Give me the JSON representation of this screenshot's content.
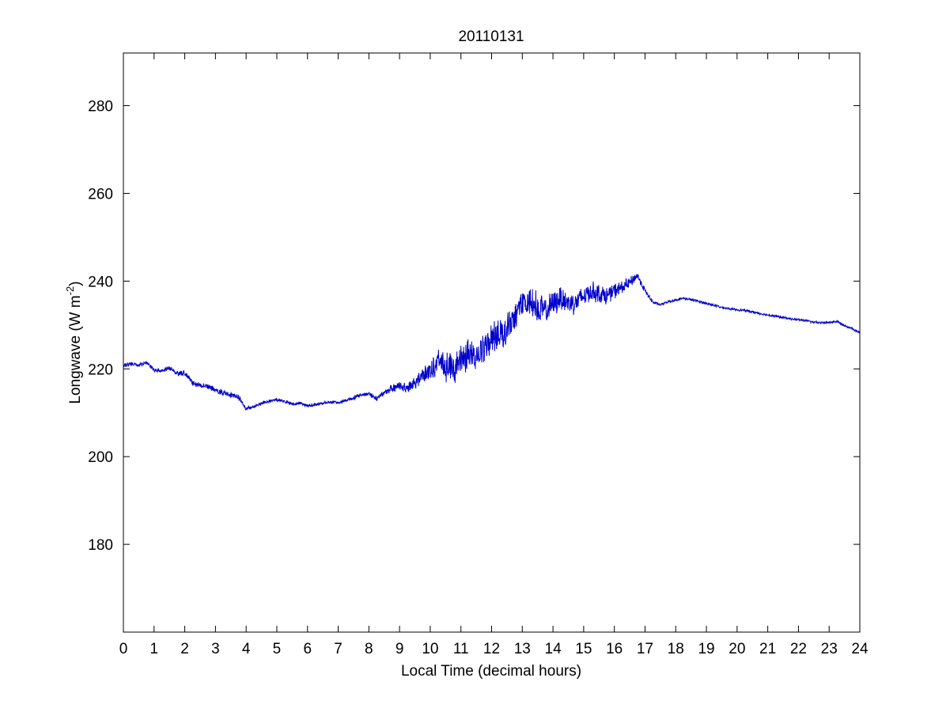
{
  "chart_data": {
    "type": "line",
    "title": "20110131",
    "xlabel": "Local Time (decimal hours)",
    "ylabel": {
      "prefix": "Longwave (W m",
      "superscript": "-2",
      "suffix": ")"
    },
    "xlim": [
      0,
      24
    ],
    "ylim": [
      160,
      292
    ],
    "xticks": [
      0,
      1,
      2,
      3,
      4,
      5,
      6,
      7,
      8,
      9,
      10,
      11,
      12,
      13,
      14,
      15,
      16,
      17,
      18,
      19,
      20,
      21,
      22,
      23,
      24
    ],
    "yticks": [
      180,
      200,
      220,
      240,
      260,
      280
    ],
    "grid": false,
    "line_color": "#0000cc",
    "series": [
      {
        "x": [
          0,
          0.25,
          0.5,
          0.75,
          1.0,
          1.25,
          1.5,
          1.75,
          2.0,
          2.25,
          2.5,
          2.75,
          3.0,
          3.25,
          3.5,
          3.75,
          4.0,
          4.25,
          4.5,
          4.75,
          5.0,
          5.25,
          5.5,
          5.75,
          6.0,
          6.25,
          6.5,
          6.75,
          7.0,
          7.25,
          7.5,
          7.75,
          8.0,
          8.25,
          8.5,
          8.75,
          9.0,
          9.25,
          9.5,
          9.75,
          10.0,
          10.25,
          10.5,
          10.75,
          11.0,
          11.25,
          11.5,
          11.75,
          12.0,
          12.25,
          12.5,
          12.75,
          13.0,
          13.25,
          13.5,
          13.75,
          14.0,
          14.25,
          14.5,
          14.75,
          15.0,
          15.25,
          15.5,
          15.75,
          16.0,
          16.25,
          16.5,
          16.75,
          17.0,
          17.25,
          17.5,
          17.75,
          18.0,
          18.25,
          18.5,
          18.75,
          19.0,
          19.25,
          19.5,
          19.75,
          20.0,
          20.25,
          20.5,
          20.75,
          21.0,
          21.25,
          21.5,
          21.75,
          22.0,
          22.25,
          22.5,
          22.75,
          23.0,
          23.25,
          23.5,
          23.75,
          24.0
        ],
        "y": [
          220.6,
          221.2,
          220.8,
          221.4,
          219.8,
          219.6,
          220.2,
          218.9,
          219.0,
          216.8,
          216.2,
          216.0,
          215.2,
          214.6,
          214.0,
          213.6,
          211.0,
          211.4,
          212.1,
          212.6,
          212.9,
          212.7,
          211.9,
          212.3,
          211.5,
          211.9,
          212.2,
          212.4,
          212.3,
          212.8,
          213.4,
          214.1,
          214.3,
          213.2,
          214.6,
          215.6,
          216.1,
          215.7,
          216.8,
          218.5,
          219.8,
          221.5,
          220.4,
          219.9,
          222.1,
          223.4,
          223.0,
          224.5,
          226.8,
          228.0,
          228.9,
          231.8,
          234.6,
          235.8,
          234.2,
          233.1,
          234.8,
          236.3,
          235.0,
          235.2,
          236.6,
          237.7,
          237.2,
          236.6,
          237.8,
          238.5,
          239.6,
          241.3,
          237.8,
          235.2,
          234.6,
          235.3,
          235.7,
          236.1,
          235.8,
          235.4,
          234.9,
          234.5,
          234.0,
          233.7,
          233.5,
          233.3,
          233.0,
          232.6,
          232.3,
          232.0,
          231.7,
          231.4,
          231.2,
          231.0,
          230.6,
          230.5,
          230.6,
          230.8,
          229.9,
          229.2,
          228.2
        ],
        "noise_amplitude": [
          0.6,
          0.5,
          0.5,
          0.5,
          0.5,
          0.5,
          0.6,
          0.6,
          0.7,
          0.8,
          0.7,
          0.7,
          0.7,
          0.7,
          0.8,
          0.8,
          0.6,
          0.4,
          0.4,
          0.4,
          0.4,
          0.4,
          0.4,
          0.4,
          0.4,
          0.4,
          0.4,
          0.4,
          0.4,
          0.4,
          0.5,
          0.5,
          0.5,
          0.6,
          0.8,
          1.0,
          1.2,
          1.3,
          1.5,
          2.0,
          2.6,
          3.2,
          3.6,
          3.8,
          4.0,
          4.0,
          4.0,
          4.0,
          4.0,
          4.0,
          4.0,
          4.0,
          3.6,
          3.6,
          3.6,
          3.5,
          3.3,
          3.2,
          3.0,
          3.0,
          2.8,
          2.6,
          2.4,
          2.3,
          2.0,
          1.8,
          1.5,
          1.0,
          0.7,
          0.5,
          0.3,
          0.3,
          0.3,
          0.3,
          0.3,
          0.3,
          0.3,
          0.3,
          0.3,
          0.3,
          0.3,
          0.3,
          0.3,
          0.3,
          0.3,
          0.3,
          0.3,
          0.3,
          0.3,
          0.3,
          0.3,
          0.3,
          0.3,
          0.3,
          0.3,
          0.3,
          0.3
        ]
      }
    ]
  }
}
